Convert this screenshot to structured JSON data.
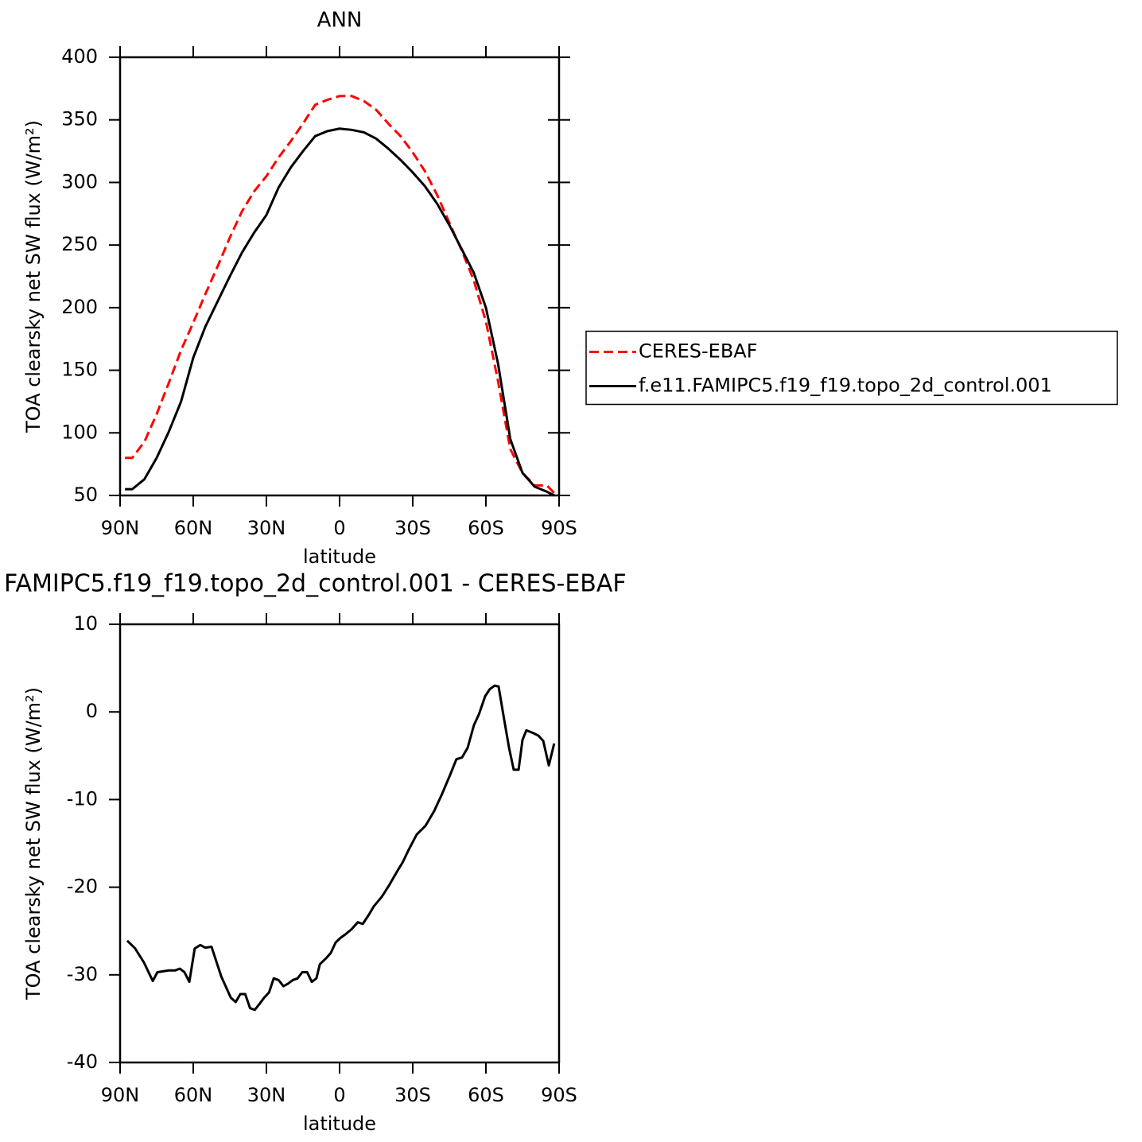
{
  "chart_data": [
    {
      "type": "line",
      "title": "ANN",
      "xlabel": "latitude",
      "ylabel": "TOA clearsky net SW flux (W/m²)",
      "x": [
        88,
        85,
        80,
        75,
        70,
        65,
        60,
        55,
        50,
        45,
        40,
        35,
        30,
        25,
        20,
        15,
        10,
        5,
        0,
        -5,
        -10,
        -15,
        -20,
        -25,
        -30,
        -35,
        -40,
        -45,
        -50,
        -55,
        -60,
        -65,
        -70,
        -75,
        -80,
        -85,
        -88
      ],
      "series": [
        {
          "name": "CERES-EBAF",
          "color": "#ff0000",
          "linestyle": "dashed",
          "values": [
            80,
            80,
            93,
            115,
            140,
            166,
            188,
            211,
            233,
            256,
            277,
            293,
            305,
            320,
            333,
            347,
            362,
            366,
            369,
            369,
            365,
            358,
            347,
            337,
            324,
            309,
            290,
            268,
            246,
            222,
            189,
            141,
            87,
            68,
            58,
            58,
            52
          ]
        },
        {
          "name": "f.e11.FAMIPC5.f19_f19.topo_2d_control.001",
          "color": "#000000",
          "linestyle": "solid",
          "values": [
            55,
            55,
            63,
            80,
            101,
            125,
            160,
            185,
            205,
            225,
            244,
            260,
            274,
            296,
            312,
            325,
            337,
            341,
            343,
            342,
            340,
            335,
            327,
            318,
            308,
            297,
            283,
            266,
            247,
            228,
            200,
            155,
            95,
            68,
            57,
            53,
            50
          ]
        }
      ],
      "xlim": [
        90,
        -90
      ],
      "xticks": [
        {
          "value": 90,
          "label": "90N"
        },
        {
          "value": 60,
          "label": "60N"
        },
        {
          "value": 30,
          "label": "30N"
        },
        0,
        {
          "value": -30,
          "label": "30S"
        },
        {
          "value": -60,
          "label": "60S"
        },
        {
          "value": -90,
          "label": "90S"
        }
      ],
      "ylim": [
        50,
        400
      ],
      "yticks": [
        50,
        100,
        150,
        200,
        250,
        300,
        350,
        400
      ],
      "legend": "right"
    },
    {
      "type": "line",
      "title": "FAMIPC5.f19_f19.topo_2d_control.001 - CERES-EBAF",
      "xlabel": "latitude",
      "ylabel": "TOA clearsky net SW flux (W/m²)",
      "x": [
        87.1,
        83.8,
        80.2,
        76.6,
        74.7,
        70.1,
        67.5,
        65.5,
        63.6,
        61.6,
        59.4,
        57.1,
        55.1,
        52.5,
        48.5,
        44.6,
        42.6,
        40.7,
        38.7,
        36.7,
        34.8,
        32.8,
        30.9,
        28.9,
        27.0,
        25.0,
        23.0,
        21.1,
        19.2,
        17.2,
        15.3,
        13.3,
        11.4,
        9.5,
        8.1,
        5.5,
        3.6,
        1.6,
        -0.3,
        -2.3,
        -4.9,
        -7.5,
        -9.5,
        -12.1,
        -14.0,
        -17.3,
        -20.5,
        -23.8,
        -25.8,
        -28.4,
        -31.6,
        -35.2,
        -38.8,
        -42.1,
        -45.3,
        -47.9,
        -50.2,
        -52.5,
        -55.1,
        -57.1,
        -59.7,
        -61.6,
        -63.6,
        -65.2,
        -67.5,
        -69.5,
        -71.4,
        -73.4,
        -75.0,
        -76.6,
        -79.3,
        -81.5,
        -83.5,
        -85.8,
        -88.0
      ],
      "series": [
        {
          "color": "#000000",
          "linestyle": "solid",
          "values": [
            -26.1,
            -27.0,
            -28.6,
            -30.7,
            -29.7,
            -29.5,
            -29.5,
            -29.3,
            -29.7,
            -30.8,
            -27.0,
            -26.6,
            -26.9,
            -26.8,
            -30.2,
            -32.6,
            -33.1,
            -32.2,
            -32.2,
            -33.8,
            -34.0,
            -33.3,
            -32.6,
            -32.0,
            -30.4,
            -30.6,
            -31.3,
            -31.0,
            -30.6,
            -30.4,
            -29.7,
            -29.7,
            -30.8,
            -30.4,
            -28.8,
            -28.1,
            -27.5,
            -26.3,
            -25.8,
            -25.4,
            -24.8,
            -24.0,
            -24.2,
            -23.1,
            -22.2,
            -21.1,
            -19.7,
            -18.1,
            -17.2,
            -15.7,
            -14.0,
            -13.0,
            -11.3,
            -9.3,
            -7.2,
            -5.4,
            -5.2,
            -4.1,
            -1.5,
            -0.3,
            1.8,
            2.6,
            3.0,
            2.9,
            -0.9,
            -4.1,
            -6.6,
            -6.6,
            -3.2,
            -2.1,
            -2.4,
            -2.7,
            -3.3,
            -6.1,
            -3.6
          ]
        }
      ],
      "xlim": [
        90,
        -90
      ],
      "xticks": [
        {
          "value": 90,
          "label": "90N"
        },
        {
          "value": 60,
          "label": "60N"
        },
        {
          "value": 30,
          "label": "30N"
        },
        0,
        {
          "value": -30,
          "label": "30S"
        },
        {
          "value": -60,
          "label": "60S"
        },
        {
          "value": -90,
          "label": "90S"
        }
      ],
      "ylim": [
        -40,
        10
      ],
      "yticks": [
        -40,
        -30,
        -20,
        -10,
        0,
        10
      ]
    }
  ]
}
